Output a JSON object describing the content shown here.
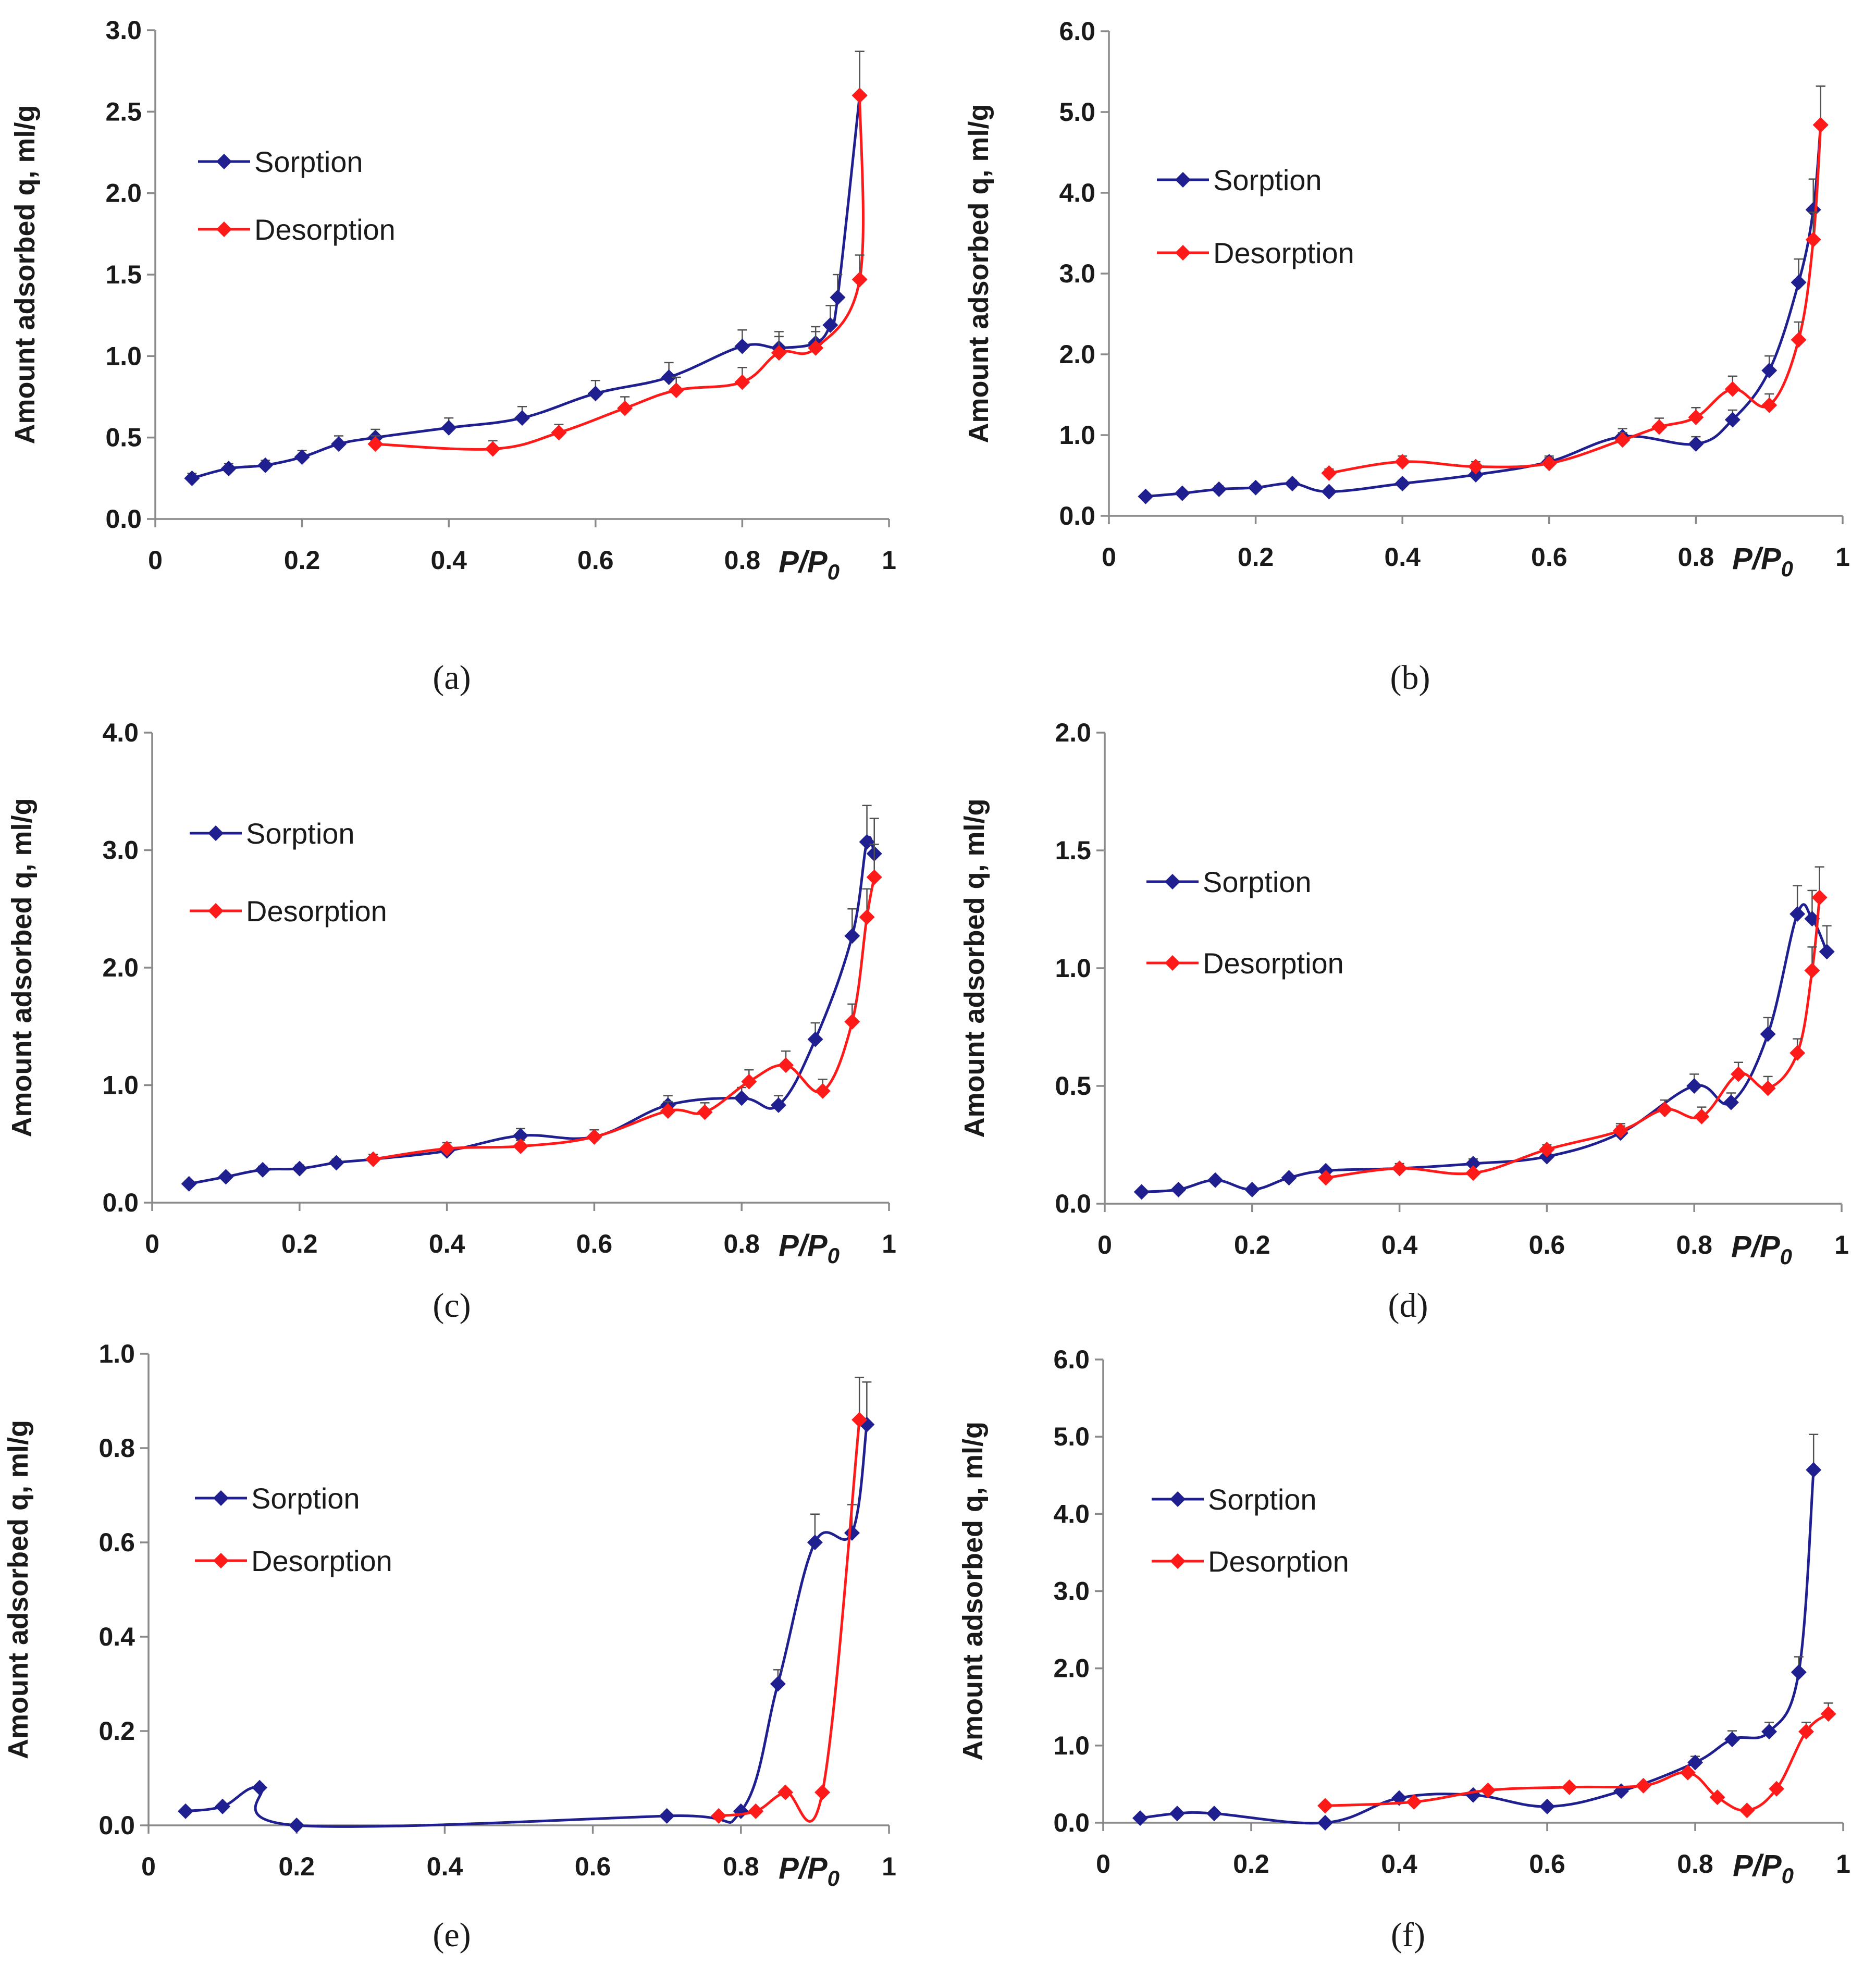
{
  "colors": {
    "sorption": "#1f1f8f",
    "desorption": "#ff1a1a",
    "axis": "#8a8a8a",
    "text": "#1a1a1a"
  },
  "chart_data": [
    {
      "panel": "(a)",
      "type": "line",
      "ylabel": "Amount adsorbed q, ml/g",
      "xlabel": "P/P",
      "xlabel_sub": "0",
      "xlim": [
        0,
        1
      ],
      "ylim": [
        0,
        3.0
      ],
      "x_ticks": [
        "0",
        "0.2",
        "0.4",
        "0.6",
        "0.8",
        "1"
      ],
      "y_ticks": [
        "0.0",
        "0.5",
        "1.0",
        "1.5",
        "2.0",
        "2.5",
        "3.0"
      ],
      "legend_position": "upper-left",
      "series": [
        {
          "name": "Sorption",
          "x": [
            0.05,
            0.1,
            0.15,
            0.2,
            0.25,
            0.3,
            0.4,
            0.5,
            0.6,
            0.7,
            0.8,
            0.85,
            0.9,
            0.92,
            0.93,
            0.96
          ],
          "y": [
            0.25,
            0.31,
            0.33,
            0.38,
            0.46,
            0.5,
            0.56,
            0.62,
            0.77,
            0.87,
            1.06,
            1.05,
            1.08,
            1.19,
            1.36,
            2.6
          ],
          "error": [
            0.03,
            0.03,
            0.03,
            0.04,
            0.05,
            0.05,
            0.06,
            0.07,
            0.08,
            0.09,
            0.1,
            0.1,
            0.1,
            0.12,
            0.14,
            0.27
          ]
        },
        {
          "name": "Desorption",
          "x": [
            0.96,
            0.96,
            0.9,
            0.85,
            0.8,
            0.71,
            0.64,
            0.55,
            0.46,
            0.3
          ],
          "y": [
            2.6,
            1.47,
            1.05,
            1.02,
            0.84,
            0.79,
            0.68,
            0.53,
            0.43,
            0.46
          ],
          "error": [
            0.27,
            0.15,
            0.1,
            0.1,
            0.09,
            0.08,
            0.07,
            0.05,
            0.05,
            0.05
          ]
        }
      ]
    },
    {
      "panel": "(b)",
      "type": "line",
      "ylabel": "Amount adsorbed q, ml/g",
      "xlabel": "P/P",
      "xlabel_sub": "0",
      "xlim": [
        0,
        1
      ],
      "ylim": [
        0,
        6.0
      ],
      "x_ticks": [
        "0",
        "0.2",
        "0.4",
        "0.6",
        "0.8",
        "1"
      ],
      "y_ticks": [
        "0.0",
        "1.0",
        "2.0",
        "3.0",
        "4.0",
        "5.0",
        "6.0"
      ],
      "legend_position": "upper-left",
      "series": [
        {
          "name": "Sorption",
          "x": [
            0.05,
            0.1,
            0.15,
            0.2,
            0.25,
            0.3,
            0.4,
            0.5,
            0.6,
            0.7,
            0.8,
            0.85,
            0.9,
            0.94,
            0.96,
            0.97
          ],
          "y": [
            0.24,
            0.28,
            0.33,
            0.35,
            0.4,
            0.3,
            0.4,
            0.51,
            0.67,
            0.98,
            0.89,
            1.19,
            1.8,
            2.89,
            3.79,
            4.84
          ],
          "error": [
            0.03,
            0.03,
            0.04,
            0.04,
            0.04,
            0.03,
            0.04,
            0.05,
            0.07,
            0.1,
            0.09,
            0.12,
            0.18,
            0.29,
            0.38,
            0.48
          ]
        },
        {
          "name": "Desorption",
          "x": [
            0.97,
            0.96,
            0.94,
            0.9,
            0.85,
            0.8,
            0.75,
            0.7,
            0.6,
            0.5,
            0.4,
            0.3
          ],
          "y": [
            4.84,
            3.42,
            2.18,
            1.37,
            1.57,
            1.22,
            1.1,
            0.94,
            0.65,
            0.61,
            0.67,
            0.53
          ],
          "error": [
            0.48,
            0.34,
            0.22,
            0.14,
            0.16,
            0.12,
            0.11,
            0.09,
            0.07,
            0.06,
            0.07,
            0.05
          ]
        }
      ]
    },
    {
      "panel": "(c)",
      "type": "line",
      "ylabel": "Amount adsorbed q, ml/g",
      "xlabel": "P/P",
      "xlabel_sub": "0",
      "xlim": [
        0,
        1
      ],
      "ylim": [
        0,
        4.0
      ],
      "x_ticks": [
        "0",
        "0.2",
        "0.4",
        "0.6",
        "0.8",
        "1"
      ],
      "y_ticks": [
        "0.0",
        "1.0",
        "2.0",
        "3.0",
        "4.0"
      ],
      "legend_position": "upper-left",
      "series": [
        {
          "name": "Sorption",
          "x": [
            0.05,
            0.1,
            0.15,
            0.2,
            0.25,
            0.3,
            0.4,
            0.5,
            0.6,
            0.7,
            0.8,
            0.85,
            0.9,
            0.95,
            0.97,
            0.98
          ],
          "y": [
            0.16,
            0.22,
            0.28,
            0.29,
            0.34,
            0.37,
            0.44,
            0.57,
            0.56,
            0.83,
            0.89,
            0.83,
            1.39,
            2.27,
            3.07,
            2.97
          ],
          "error": [
            0.02,
            0.02,
            0.03,
            0.03,
            0.03,
            0.04,
            0.04,
            0.06,
            0.06,
            0.08,
            0.09,
            0.08,
            0.14,
            0.23,
            0.31,
            0.3
          ]
        },
        {
          "name": "Desorption",
          "x": [
            0.98,
            0.97,
            0.95,
            0.91,
            0.86,
            0.81,
            0.75,
            0.7,
            0.6,
            0.5,
            0.4,
            0.3
          ],
          "y": [
            2.77,
            2.43,
            1.54,
            0.95,
            1.17,
            1.03,
            0.77,
            0.78,
            0.56,
            0.48,
            0.46,
            0.37
          ],
          "error": [
            0.28,
            0.24,
            0.15,
            0.1,
            0.12,
            0.1,
            0.08,
            0.08,
            0.06,
            0.05,
            0.05,
            0.04
          ]
        }
      ]
    },
    {
      "panel": "(d)",
      "type": "line",
      "ylabel": "Amount adsorbed q, ml/g",
      "xlabel": "P/P",
      "xlabel_sub": "0",
      "xlim": [
        0,
        1
      ],
      "ylim": [
        0,
        2.0
      ],
      "x_ticks": [
        "0",
        "0.2",
        "0.4",
        "0.6",
        "0.8",
        "1"
      ],
      "y_ticks": [
        "0.0",
        "0.5",
        "1.0",
        "1.5",
        "2.0"
      ],
      "legend_position": "upper-left",
      "series": [
        {
          "name": "Sorption",
          "x": [
            0.05,
            0.1,
            0.15,
            0.2,
            0.25,
            0.3,
            0.4,
            0.5,
            0.6,
            0.7,
            0.8,
            0.85,
            0.9,
            0.94,
            0.96,
            0.98
          ],
          "y": [
            0.05,
            0.06,
            0.1,
            0.06,
            0.11,
            0.14,
            0.15,
            0.17,
            0.2,
            0.3,
            0.5,
            0.43,
            0.72,
            1.23,
            1.21,
            1.07
          ],
          "error": [
            0.01,
            0.01,
            0.01,
            0.01,
            0.01,
            0.01,
            0.02,
            0.02,
            0.02,
            0.03,
            0.05,
            0.04,
            0.07,
            0.12,
            0.12,
            0.11
          ]
        },
        {
          "name": "Desorption",
          "x": [
            0.97,
            0.96,
            0.94,
            0.9,
            0.86,
            0.81,
            0.76,
            0.7,
            0.6,
            0.5,
            0.4,
            0.3
          ],
          "y": [
            1.3,
            0.99,
            0.64,
            0.49,
            0.55,
            0.37,
            0.4,
            0.31,
            0.23,
            0.13,
            0.15,
            0.11
          ],
          "error": [
            0.13,
            0.1,
            0.06,
            0.05,
            0.05,
            0.04,
            0.04,
            0.03,
            0.02,
            0.01,
            0.02,
            0.01
          ]
        }
      ]
    },
    {
      "panel": "(e)",
      "type": "line",
      "ylabel": "Amount adsorbed q, ml/g",
      "xlabel": "P/P",
      "xlabel_sub": "0",
      "xlim": [
        0,
        1
      ],
      "ylim": [
        0,
        1.0
      ],
      "x_ticks": [
        "0",
        "0.2",
        "0.4",
        "0.6",
        "0.8",
        "1"
      ],
      "y_ticks": [
        "0.0",
        "0.2",
        "0.4",
        "0.6",
        "0.8",
        "1.0"
      ],
      "legend_position": "upper-left",
      "series": [
        {
          "name": "Sorption",
          "x": [
            0.05,
            0.1,
            0.15,
            0.2,
            0.7,
            0.8,
            0.85,
            0.9,
            0.95,
            0.97
          ],
          "y": [
            0.03,
            0.04,
            0.08,
            0.0,
            0.02,
            0.03,
            0.3,
            0.6,
            0.62,
            0.85
          ],
          "error": [
            0.0,
            0.0,
            0.0,
            0.0,
            0.0,
            0.0,
            0.03,
            0.06,
            0.06,
            0.09
          ]
        },
        {
          "name": "Desorption",
          "x": [
            0.96,
            0.91,
            0.86,
            0.82,
            0.77
          ],
          "y": [
            0.86,
            0.07,
            0.07,
            0.03,
            0.02
          ],
          "error": [
            0.09,
            0.0,
            0.0,
            0.0,
            0.0
          ]
        }
      ]
    },
    {
      "panel": "(f)",
      "type": "line",
      "ylabel": "Amount adsorbed q, ml/g",
      "xlabel": "P/P",
      "xlabel_sub": "0",
      "xlim": [
        0,
        1
      ],
      "ylim": [
        0,
        6.0
      ],
      "x_ticks": [
        "0",
        "0.2",
        "0.4",
        "0.6",
        "0.8",
        "1"
      ],
      "y_ticks": [
        "0.0",
        "1.0",
        "2.0",
        "3.0",
        "4.0",
        "5.0",
        "6.0"
      ],
      "legend_position": "upper-left",
      "series": [
        {
          "name": "Sorption",
          "x": [
            0.05,
            0.1,
            0.15,
            0.3,
            0.4,
            0.5,
            0.6,
            0.7,
            0.8,
            0.85,
            0.9,
            0.94,
            0.96
          ],
          "y": [
            0.06,
            0.12,
            0.12,
            0.0,
            0.32,
            0.36,
            0.21,
            0.41,
            0.78,
            1.08,
            1.18,
            1.95,
            4.57
          ],
          "error": [
            0.0,
            0.0,
            0.0,
            0.0,
            0.03,
            0.04,
            0.0,
            0.04,
            0.08,
            0.11,
            0.12,
            0.2,
            0.46
          ]
        },
        {
          "name": "Desorption",
          "x": [
            0.98,
            0.95,
            0.91,
            0.87,
            0.83,
            0.79,
            0.73,
            0.63,
            0.52,
            0.42,
            0.3
          ],
          "y": [
            1.41,
            1.18,
            0.44,
            0.16,
            0.33,
            0.65,
            0.48,
            0.46,
            0.42,
            0.27,
            0.22
          ],
          "error": [
            0.14,
            0.12,
            0.0,
            0.0,
            0.0,
            0.0,
            0.0,
            0.0,
            0.0,
            0.0,
            0.0
          ]
        }
      ]
    }
  ]
}
